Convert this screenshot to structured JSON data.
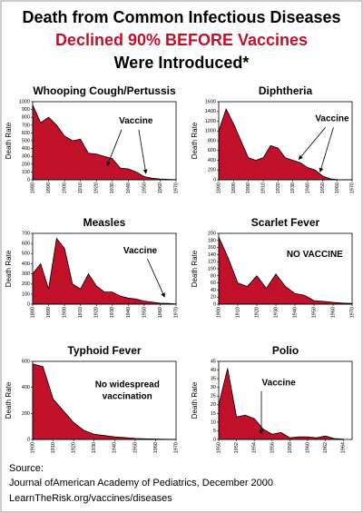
{
  "header": {
    "lines": [
      "Death from Common Infectious Diseases",
      "Declined 90% BEFORE Vaccines",
      "Were Introduced*"
    ]
  },
  "chart_data": [
    {
      "type": "area",
      "title": "Whooping Cough/Pertussis",
      "ylabel": "Death Rate",
      "color": "#c0102a",
      "x": [
        1880,
        1885,
        1890,
        1895,
        1900,
        1905,
        1910,
        1915,
        1920,
        1925,
        1930,
        1935,
        1940,
        1945,
        1950,
        1955,
        1960,
        1965,
        1970
      ],
      "values": [
        960,
        730,
        800,
        700,
        560,
        500,
        520,
        340,
        330,
        300,
        270,
        150,
        140,
        100,
        40,
        20,
        10,
        5,
        2
      ],
      "xlim": [
        1880,
        1970
      ],
      "xticks": [
        1880,
        1890,
        1900,
        1910,
        1920,
        1930,
        1940,
        1950,
        1960,
        1970
      ],
      "ylim": [
        0,
        1000
      ],
      "yticks": [
        0,
        100,
        200,
        300,
        400,
        500,
        600,
        700,
        800,
        900,
        1000
      ],
      "annotations": [
        "Vaccine"
      ]
    },
    {
      "type": "area",
      "title": "Diphtheria",
      "ylabel": "Death Rate",
      "color": "#c0102a",
      "x": [
        1880,
        1885,
        1890,
        1895,
        1900,
        1905,
        1910,
        1915,
        1920,
        1925,
        1930,
        1935,
        1940,
        1945,
        1950,
        1955,
        1960,
        1965,
        1970
      ],
      "values": [
        1000,
        1450,
        1150,
        800,
        450,
        400,
        450,
        700,
        650,
        450,
        400,
        350,
        250,
        200,
        80,
        20,
        5,
        2,
        1
      ],
      "xlim": [
        1880,
        1970
      ],
      "xticks": [
        1880,
        1890,
        1900,
        1910,
        1920,
        1930,
        1940,
        1950,
        1960,
        1970
      ],
      "ylim": [
        0,
        1600
      ],
      "yticks": [
        0,
        200,
        400,
        600,
        800,
        1000,
        1200,
        1400,
        1600
      ],
      "annotations": [
        "Vaccine"
      ]
    },
    {
      "type": "area",
      "title": "Measles",
      "ylabel": "Death Rate",
      "color": "#c0102a",
      "x": [
        1880,
        1885,
        1890,
        1895,
        1900,
        1905,
        1910,
        1915,
        1920,
        1925,
        1930,
        1935,
        1940,
        1945,
        1950,
        1955,
        1960,
        1965,
        1970
      ],
      "values": [
        300,
        400,
        150,
        650,
        550,
        200,
        150,
        300,
        180,
        120,
        120,
        80,
        60,
        50,
        30,
        20,
        10,
        8,
        2
      ],
      "xlim": [
        1880,
        1970
      ],
      "xticks": [
        1880,
        1890,
        1900,
        1910,
        1920,
        1930,
        1940,
        1950,
        1960,
        1970
      ],
      "ylim": [
        0,
        700
      ],
      "yticks": [
        0,
        100,
        200,
        300,
        400,
        500,
        600,
        700
      ],
      "annotations": [
        "Vaccine"
      ]
    },
    {
      "type": "area",
      "title": "Scarlet Fever",
      "ylabel": "Death Rate",
      "color": "#c0102a",
      "x": [
        1900,
        1905,
        1910,
        1915,
        1920,
        1925,
        1930,
        1935,
        1940,
        1945,
        1950,
        1955,
        1960,
        1965,
        1970
      ],
      "values": [
        190,
        130,
        60,
        50,
        80,
        45,
        85,
        50,
        30,
        25,
        10,
        8,
        5,
        3,
        2
      ],
      "xlim": [
        1900,
        1970
      ],
      "xticks": [
        1900,
        1910,
        1920,
        1930,
        1940,
        1950,
        1960,
        1970
      ],
      "ylim": [
        0,
        200
      ],
      "yticks": [
        0,
        20,
        40,
        60,
        80,
        100,
        120,
        140,
        160,
        180,
        200
      ],
      "annotations": [
        "NO VACCINE"
      ]
    },
    {
      "type": "area",
      "title": "Typhoid Fever",
      "ylabel": "Death Rate",
      "color": "#c0102a",
      "x": [
        1900,
        1905,
        1910,
        1915,
        1920,
        1925,
        1930,
        1935,
        1940,
        1945,
        1950,
        1955,
        1960,
        1965,
        1970
      ],
      "values": [
        580,
        560,
        310,
        220,
        130,
        70,
        40,
        30,
        20,
        15,
        8,
        5,
        3,
        2,
        1
      ],
      "xlim": [
        1900,
        1970
      ],
      "xticks": [
        1900,
        1910,
        1920,
        1930,
        1940,
        1950,
        1960,
        1970
      ],
      "ylim": [
        0,
        600
      ],
      "yticks": [
        0,
        200,
        400,
        600
      ],
      "annotations": [
        "No widespread",
        "vaccination"
      ]
    },
    {
      "type": "area",
      "title": "Polio",
      "ylabel": "Death Rate",
      "color": "#c0102a",
      "x": [
        1950,
        1951,
        1952,
        1953,
        1954,
        1955,
        1956,
        1957,
        1958,
        1959,
        1960,
        1961,
        1962,
        1963,
        1964
      ],
      "values": [
        20,
        41,
        13,
        14,
        12,
        6,
        3,
        4,
        1,
        1.5,
        1.5,
        1,
        2,
        0.5,
        0.2
      ],
      "xlim": [
        1950,
        1965
      ],
      "xticks": [
        1950,
        1952,
        1954,
        1956,
        1958,
        1960,
        1962,
        1964
      ],
      "ylim": [
        0,
        45
      ],
      "yticks": [
        0,
        5,
        10,
        15,
        20,
        25,
        30,
        35,
        40,
        45
      ],
      "annotations": [
        "Vaccine"
      ]
    }
  ],
  "footer": {
    "lines": [
      "Source:",
      "Journal ofAmerican Academy of Pediatrics, December 2000",
      "LearnTheRisk.org/vaccines/diseases"
    ]
  }
}
